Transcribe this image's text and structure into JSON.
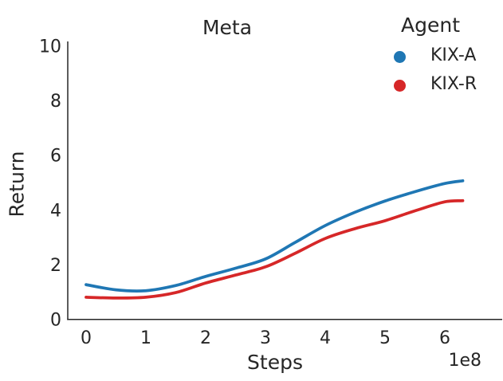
{
  "chart_data": {
    "type": "line",
    "title": "Meta",
    "xlabel": "Steps",
    "ylabel": "Return",
    "x_offset_label": "1e8",
    "x_units": "steps ×1e8",
    "xlim": [
      -0.31,
      6.95
    ],
    "ylim": [
      0,
      10.15
    ],
    "xticks": [
      0,
      1,
      2,
      3,
      4,
      5,
      6
    ],
    "yticks": [
      0,
      2,
      4,
      6,
      8,
      10
    ],
    "grid": false,
    "x": [
      0,
      0.5,
      1.0,
      1.5,
      2.0,
      2.5,
      3.0,
      3.5,
      4.0,
      4.5,
      5.0,
      5.5,
      6.0,
      6.3
    ],
    "series": [
      {
        "name": "KIX-A",
        "color": "#1f77b4",
        "values": [
          1.25,
          1.06,
          1.03,
          1.22,
          1.55,
          1.85,
          2.19,
          2.8,
          3.41,
          3.9,
          4.31,
          4.65,
          4.95,
          5.05
        ]
      },
      {
        "name": "KIX-R",
        "color": "#d62728",
        "values": [
          0.79,
          0.76,
          0.79,
          0.96,
          1.31,
          1.6,
          1.9,
          2.4,
          2.94,
          3.3,
          3.59,
          3.95,
          4.28,
          4.32
        ]
      }
    ],
    "legend": {
      "title": "Agent",
      "position": "upper right, above axes",
      "entries": [
        {
          "label": "KIX-A",
          "color": "#1f77b4"
        },
        {
          "label": "KIX-R",
          "color": "#d62728"
        }
      ]
    }
  },
  "colors": {
    "text": "#262626",
    "spine": "#262626",
    "background": "#ffffff"
  }
}
